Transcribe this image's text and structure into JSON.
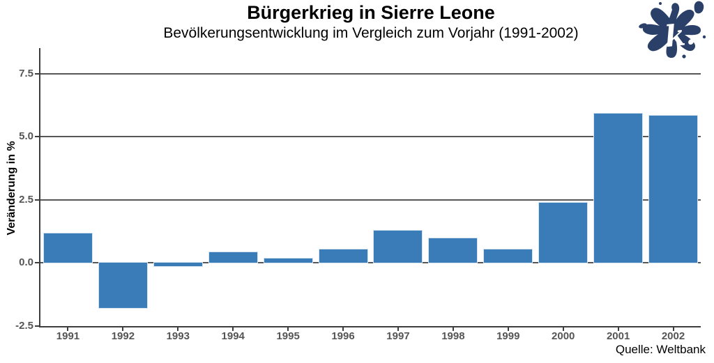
{
  "header": {
    "title": "Bürgerkrieg in Sierre Leone",
    "subtitle": "Bevölkerungsentwicklung im Vergleich zum Vorjahr (1991-2002)"
  },
  "y_axis": {
    "label": "Veränderung in %",
    "tick_labels": [
      "7.5",
      "5.0",
      "2.5",
      "0.0",
      "-2.5"
    ],
    "tick_values": [
      7.5,
      5.0,
      2.5,
      0.0,
      -2.5
    ]
  },
  "source": {
    "label": "Quelle: Weltbank"
  },
  "logo": {
    "letter": "k.",
    "color": "#2b4069",
    "description": "ink-splat-logo-with-k"
  },
  "colors": {
    "bar": "#3a7cb8",
    "bar_edge": "#d6e4f0",
    "gridline": "#565656",
    "axis": "#3d3d3d",
    "tick_text": "#555555"
  },
  "chart_data": {
    "type": "bar",
    "title": "Bürgerkrieg in Sierre Leone",
    "subtitle": "Bevölkerungsentwicklung im Vergleich zum Vorjahr (1991-2002)",
    "categories": [
      "1991",
      "1992",
      "1993",
      "1994",
      "1995",
      "1996",
      "1997",
      "1998",
      "1999",
      "2000",
      "2001",
      "2002"
    ],
    "values": [
      1.2,
      -1.8,
      -0.15,
      0.45,
      0.2,
      0.55,
      1.3,
      1.0,
      0.55,
      2.4,
      5.95,
      5.85
    ],
    "xlabel": "",
    "ylabel": "Veränderung in %",
    "ylim": [
      -2.5,
      8.5
    ],
    "yticks": [
      -2.5,
      0.0,
      2.5,
      5.0,
      7.5
    ],
    "grid": "horizontal-only, dark gray, behind bars",
    "legend": "none",
    "bar_color": "#3a7cb8",
    "source": "Quelle: Weltbank"
  }
}
